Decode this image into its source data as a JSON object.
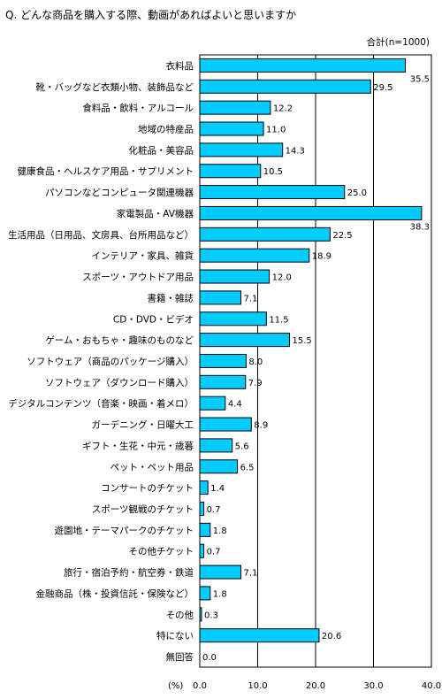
{
  "chart_data": {
    "type": "bar",
    "orientation": "horizontal",
    "title": "Q. どんな商品を購入する際、動画があればよいと思いますか",
    "sample_label": "合計(n=1000)",
    "unit_label": "(%)",
    "categories": [
      "衣料品",
      "靴・バッグなど衣類小物、装飾品など",
      "食料品・飲料・アルコール",
      "地域の特産品",
      "化粧品・美容品",
      "健康食品・ヘルスケア用品・サプリメント",
      "パソコンなどコンピュータ関連機器",
      "家電製品・AV機器",
      "生活用品（日用品、文房具、台所用品など）",
      "インテリア・家具、雑貨",
      "スポーツ・アウトドア用品",
      "書籍・雑誌",
      "CD・DVD・ビデオ",
      "ゲーム・おもちゃ・趣味のものなど",
      "ソフトウェア（商品のパッケージ購入）",
      "ソフトウェア（ダウンロード購入）",
      "デジタルコンテンツ（音楽・映画・着メロ）",
      "ガーデニング・日曜大工",
      "ギフト・生花・中元・歳暮",
      "ペット・ペット用品",
      "コンサートのチケット",
      "スポーツ観戦のチケット",
      "遊園地・テーマパークのチケット",
      "その他チケット",
      "旅行・宿泊予約・航空券・鉄道",
      "金融商品（株・投資信託・保険など）",
      "その他",
      "特にない",
      "無回答"
    ],
    "values": [
      35.5,
      29.5,
      12.2,
      11.0,
      14.3,
      10.5,
      25.0,
      38.3,
      22.5,
      18.9,
      12.0,
      7.1,
      11.5,
      15.5,
      8.0,
      7.9,
      4.4,
      8.9,
      5.6,
      6.5,
      1.4,
      0.7,
      1.8,
      0.7,
      7.1,
      1.8,
      0.3,
      20.6,
      0.0
    ],
    "value_labels": [
      "35.5",
      "29.5",
      "12.2",
      "11.0",
      "14.3",
      "10.5",
      "25.0",
      "38.3",
      "22.5",
      "18.9",
      "12.0",
      "7.1",
      "11.5",
      "15.5",
      "8.0",
      "7.9",
      "4.4",
      "8.9",
      "5.6",
      "6.5",
      "1.4",
      "0.7",
      "1.8",
      "0.7",
      "7.1",
      "1.8",
      "0.3",
      "20.6",
      "0.0"
    ],
    "xlim": [
      0,
      40
    ],
    "xticks": [
      "0.0",
      "10.0",
      "20.0",
      "30.0",
      "40.0"
    ],
    "gridlines": true,
    "bar_color": "#00ccff",
    "bar_edge_color": "#000000"
  }
}
